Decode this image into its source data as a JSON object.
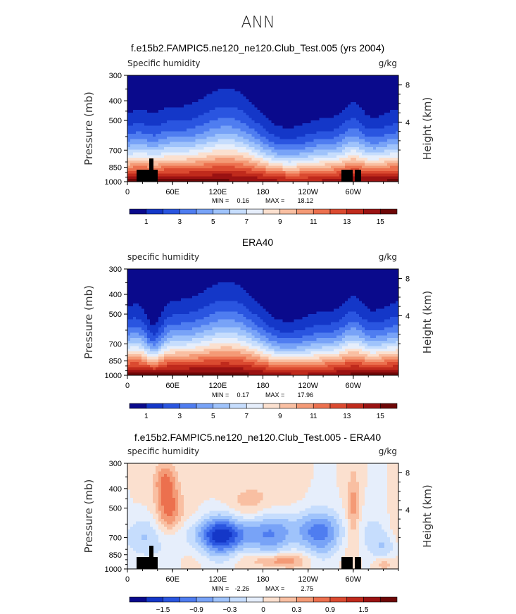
{
  "figure": {
    "title": "ANN"
  },
  "colors": {
    "abs_palette": [
      "#0a0a8c",
      "#1437c8",
      "#2a55e0",
      "#4f7df0",
      "#78a3f7",
      "#9fc3fb",
      "#c6ddfd",
      "#e6eefb",
      "#fbe0cf",
      "#f9bfa2",
      "#f49a76",
      "#ec704e",
      "#db4a30",
      "#c02a1c",
      "#9a1212",
      "#6e0707"
    ],
    "diff_palette": [
      "#0a0a8c",
      "#1437c8",
      "#2a55e0",
      "#4f7df0",
      "#78a3f7",
      "#9fc3fb",
      "#c6ddfd",
      "#e6eefb",
      "#fbe0cf",
      "#f9bfa2",
      "#f49a76",
      "#ec704e",
      "#db4a30",
      "#c02a1c",
      "#9a1212",
      "#6e0707"
    ],
    "topography": "#000000"
  },
  "chart_data": [
    {
      "type": "heatmap",
      "title": "f.e15b2.FAMPIC5.ne120_ne120.Club_Test.005 (yrs 2004)",
      "left_label": "Specific humidity",
      "units": "g/kg",
      "ylabel": "Pressure (mb)",
      "ylabel_right": "Height (km)",
      "yticks": [
        "300",
        "400",
        "500",
        "700",
        "850",
        "1000"
      ],
      "yticks_right": [
        "8",
        "4"
      ],
      "xticks": [
        "0",
        "60E",
        "120E",
        "180",
        "120W",
        "60W"
      ],
      "ylim": [
        1000,
        300
      ],
      "xlim": [
        0,
        360
      ],
      "stats": {
        "min_label": "MIN =",
        "min": "0.16",
        "max_label": "MAX =",
        "max": "18.12"
      },
      "colorbar_labels": [
        "1",
        "3",
        "5",
        "7",
        "9",
        "11",
        "13",
        "15"
      ],
      "profile": "model"
    },
    {
      "type": "heatmap",
      "title": "ERA40",
      "left_label": "specific humidity",
      "units": "g/kg",
      "ylabel": "Pressure (mb)",
      "ylabel_right": "Height (km)",
      "yticks": [
        "300",
        "400",
        "500",
        "700",
        "850",
        "1000"
      ],
      "yticks_right": [
        "8",
        "4"
      ],
      "xticks": [
        "0",
        "60E",
        "120E",
        "180",
        "120W",
        "60W"
      ],
      "ylim": [
        1000,
        300
      ],
      "xlim": [
        0,
        360
      ],
      "stats": {
        "min_label": "MIN =",
        "min": "0.17",
        "max_label": "MAX =",
        "max": "17.96"
      },
      "colorbar_labels": [
        "1",
        "3",
        "5",
        "7",
        "9",
        "11",
        "13",
        "15"
      ],
      "profile": "obs"
    },
    {
      "type": "heatmap",
      "title": "f.e15b2.FAMPIC5.ne120_ne120.Club_Test.005 - ERA40",
      "left_label": "specific humidity",
      "units": "g/kg",
      "ylabel": "Pressure (mb)",
      "ylabel_right": "Height (km)",
      "yticks": [
        "300",
        "400",
        "500",
        "700",
        "850",
        "1000"
      ],
      "yticks_right": [
        "8",
        "4"
      ],
      "xticks": [
        "0",
        "60E",
        "120E",
        "180",
        "120W",
        "60W"
      ],
      "ylim": [
        1000,
        300
      ],
      "xlim": [
        0,
        360
      ],
      "stats": {
        "min_label": "MIN =",
        "min": "-2.26",
        "max_label": "MAX =",
        "max": "2.75"
      },
      "colorbar_labels": [
        "−1.5",
        "−0.9",
        "−0.3",
        "0",
        "0.3",
        "0.9",
        "1.5"
      ],
      "profile": "diff"
    }
  ]
}
